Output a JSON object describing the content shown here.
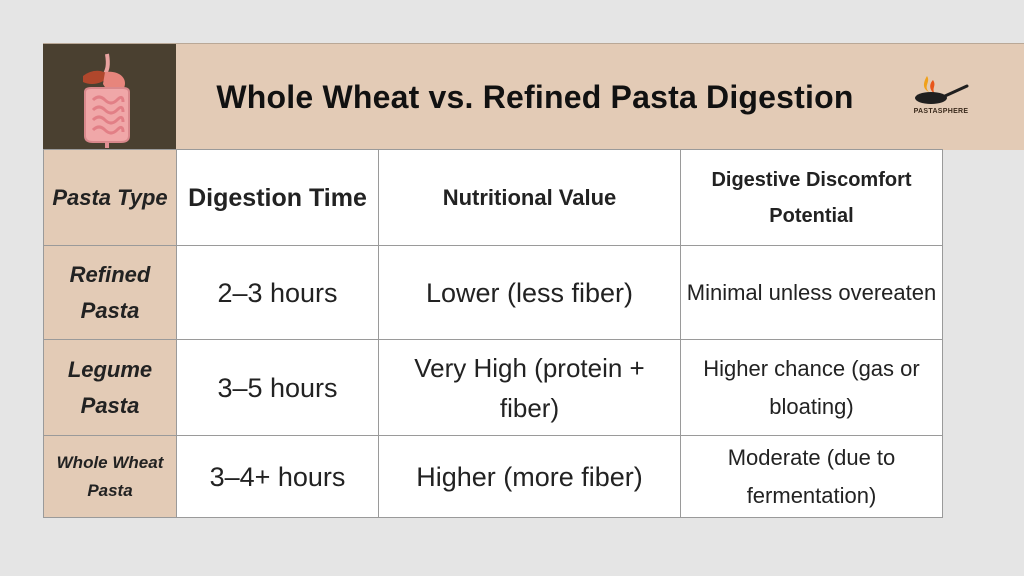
{
  "header": {
    "title": "Whole Wheat vs. Refined Pasta Digestion",
    "logo_text": "PASTASPHERE",
    "icon": "digestive-system-icon",
    "logo_icon": "frying-pan-flame-icon"
  },
  "colors": {
    "header_bg": "#e3cbb6",
    "icon_bg": "#4a4030",
    "page_bg": "#e5e5e5",
    "cell_bg": "#ffffff"
  },
  "table": {
    "headers": {
      "type": "Pasta Type",
      "time": "Digestion Time",
      "nutrition": "Nutritional Value",
      "discomfort": "Digestive Discomfort Potential"
    },
    "rows": [
      {
        "type": "Refined Pasta",
        "time": "2–3 hours",
        "nutrition": "Lower (less fiber)",
        "discomfort": "Minimal unless overeaten"
      },
      {
        "type": "Legume Pasta",
        "time": "3–5 hours",
        "nutrition": "Very High (protein + fiber)",
        "discomfort": "Higher chance (gas or bloating)"
      },
      {
        "type": "Whole Wheat Pasta",
        "time": "3–4+ hours",
        "nutrition": "Higher (more fiber)",
        "discomfort": "Moderate (due to fermentation)"
      }
    ]
  }
}
